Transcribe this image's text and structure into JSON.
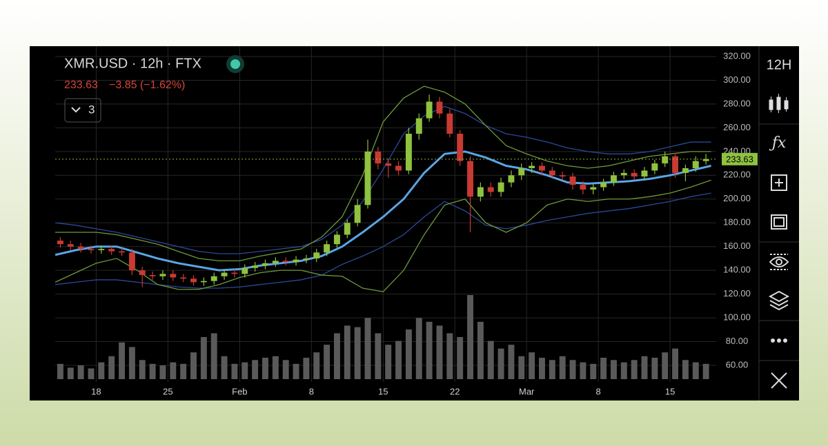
{
  "header": {
    "title": "XMR.USD · 12h · FTX",
    "change": "−3.85 (−1.62%)",
    "indicator_count": 3
  },
  "toolbar": {
    "interval": "12H"
  },
  "chart_data": {
    "type": "candlestick",
    "x": [
      0.5,
      1.5,
      2.5,
      3.5,
      4.5,
      5.5,
      6.5,
      7.5,
      8.5,
      9.5,
      10.5,
      11.5,
      12.5,
      13.5,
      14.5,
      15.5,
      16.5,
      17.5,
      18.5,
      19.5,
      20.5,
      21.5,
      22.5,
      23.5,
      24.5,
      25.5,
      26.5,
      27.5,
      28.5,
      29.5,
      30.5,
      31.5,
      32.5,
      33.5,
      34.5,
      35.5,
      36.5,
      37.5,
      38.5,
      39.5,
      40.5,
      41.5,
      42.5,
      43.5,
      44.5,
      45.5,
      46.5,
      47.5,
      48.5,
      49.5,
      50.5,
      51.5,
      52.5,
      53.5,
      54.5,
      55.5,
      56.5,
      57.5,
      58.5,
      59.5,
      60.5,
      61.5,
      62.5,
      63.5
    ],
    "open": [
      165,
      162,
      160,
      158,
      157,
      158,
      156,
      155,
      140,
      136,
      135,
      137,
      134,
      133,
      130,
      131,
      135,
      138,
      137,
      142,
      144,
      146,
      148,
      147,
      149,
      150,
      155,
      162,
      170,
      180,
      195,
      240,
      230,
      228,
      224,
      255,
      268,
      282,
      272,
      255,
      232,
      202,
      210,
      206,
      214,
      220,
      226,
      228,
      224,
      220,
      219,
      212,
      208,
      210,
      214,
      220,
      222,
      219,
      224,
      230,
      236,
      222,
      226,
      232
    ],
    "high": [
      168,
      165,
      163,
      161,
      161,
      161,
      159,
      158,
      143,
      139,
      140,
      140,
      137,
      136,
      134,
      138,
      141,
      141,
      145,
      147,
      149,
      151,
      151,
      152,
      153,
      158,
      165,
      173,
      183,
      200,
      250,
      244,
      234,
      232,
      260,
      272,
      288,
      286,
      276,
      258,
      236,
      214,
      214,
      218,
      224,
      230,
      231,
      231,
      227,
      223,
      222,
      215,
      213,
      217,
      223,
      225,
      225,
      227,
      233,
      240,
      239,
      229,
      236,
      238
    ],
    "low": [
      159,
      157,
      155,
      154,
      154,
      153,
      152,
      136,
      126,
      132,
      132,
      131,
      130,
      127,
      127,
      128,
      132,
      134,
      134,
      139,
      141,
      143,
      144,
      144,
      146,
      147,
      152,
      159,
      167,
      177,
      192,
      225,
      218,
      220,
      221,
      250,
      265,
      268,
      252,
      228,
      172,
      198,
      202,
      202,
      210,
      216,
      222,
      220,
      217,
      216,
      208,
      204,
      204,
      207,
      211,
      217,
      216,
      216,
      221,
      227,
      218,
      215,
      223,
      229
    ],
    "close": [
      162,
      160,
      158,
      157,
      158,
      156,
      155,
      140,
      136,
      135,
      137,
      134,
      133,
      130,
      131,
      135,
      138,
      137,
      142,
      144,
      146,
      148,
      147,
      149,
      150,
      155,
      162,
      170,
      180,
      195,
      240,
      230,
      228,
      224,
      255,
      268,
      282,
      272,
      255,
      232,
      202,
      210,
      206,
      214,
      220,
      226,
      228,
      224,
      220,
      219,
      212,
      208,
      210,
      214,
      220,
      222,
      219,
      224,
      230,
      236,
      222,
      226,
      232,
      233.63
    ],
    "volume": [
      20,
      15,
      18,
      14,
      22,
      30,
      48,
      42,
      25,
      20,
      18,
      22,
      20,
      35,
      55,
      60,
      30,
      20,
      22,
      25,
      28,
      30,
      25,
      20,
      28,
      35,
      45,
      60,
      70,
      68,
      80,
      60,
      45,
      50,
      65,
      80,
      75,
      70,
      60,
      55,
      110,
      75,
      50,
      40,
      45,
      30,
      35,
      28,
      25,
      30,
      25,
      22,
      20,
      28,
      25,
      22,
      25,
      30,
      28,
      35,
      40,
      25,
      22,
      20
    ],
    "up_color": "#8fc23f",
    "down_color": "#c83a32",
    "volume_color": "#5a5a5a",
    "xlim": [
      0,
      64.3
    ],
    "xticks": [
      {
        "value": 4,
        "label": "18"
      },
      {
        "value": 11,
        "label": "25"
      },
      {
        "value": 18,
        "label": "Feb"
      },
      {
        "value": 25,
        "label": "8"
      },
      {
        "value": 32,
        "label": "15"
      },
      {
        "value": 39,
        "label": "22"
      },
      {
        "value": 46,
        "label": "Mar"
      },
      {
        "value": 53,
        "label": "8"
      },
      {
        "value": 60,
        "label": "15"
      }
    ],
    "ylim": [
      60,
      320
    ],
    "yticks": [
      {
        "value": 60,
        "label": "60.00"
      },
      {
        "value": 80,
        "label": "80.00"
      },
      {
        "value": 100,
        "label": "100.00"
      },
      {
        "value": 120,
        "label": "120.00"
      },
      {
        "value": 140,
        "label": "140.00"
      },
      {
        "value": 160,
        "label": "160.00"
      },
      {
        "value": 180,
        "label": "180.00"
      },
      {
        "value": 200,
        "label": "200.00"
      },
      {
        "value": 220,
        "label": "220.00"
      },
      {
        "value": 240,
        "label": "240.00"
      },
      {
        "value": 260,
        "label": "260.00"
      },
      {
        "value": 280,
        "label": "280.00"
      },
      {
        "value": 300,
        "label": "300.00"
      },
      {
        "value": 320,
        "label": "320.00"
      }
    ],
    "grid": true,
    "last_price": 233.63,
    "last_price_color": "#8fc23f",
    "change_color": "#d9443a",
    "overlay_x": [
      0,
      2,
      4,
      6,
      8,
      10,
      12,
      14,
      16,
      18,
      20,
      22,
      24,
      26,
      28,
      30,
      32,
      34,
      36,
      38,
      40,
      42,
      44,
      46,
      48,
      50,
      52,
      54,
      56,
      58,
      60,
      62,
      64
    ],
    "overlays": [
      {
        "color": "#2b4a9c",
        "values": [
          180,
          178,
          175,
          172,
          168,
          164,
          160,
          156,
          154,
          154,
          156,
          158,
          160,
          166,
          178,
          198,
          225,
          255,
          270,
          278,
          272,
          262,
          255,
          252,
          248,
          243,
          240,
          238,
          238,
          240,
          244,
          248,
          248
        ]
      },
      {
        "color": "#2b4a9c",
        "values": [
          128,
          130,
          132,
          132,
          130,
          128,
          126,
          125,
          125,
          126,
          128,
          130,
          132,
          136,
          145,
          152,
          160,
          170,
          185,
          198,
          190,
          178,
          175,
          178,
          182,
          185,
          188,
          190,
          192,
          195,
          198,
          202,
          205
        ]
      },
      {
        "color": "#6f9a3c",
        "values": [
          172,
          172,
          172,
          170,
          166,
          162,
          156,
          150,
          148,
          148,
          152,
          155,
          158,
          168,
          185,
          220,
          265,
          285,
          295,
          290,
          280,
          262,
          245,
          238,
          232,
          228,
          226,
          228,
          232,
          236,
          238,
          240,
          240
        ]
      },
      {
        "color": "#6f9a3c",
        "values": [
          130,
          138,
          146,
          150,
          140,
          128,
          124,
          124,
          128,
          134,
          138,
          140,
          140,
          136,
          135,
          125,
          122,
          140,
          170,
          195,
          200,
          180,
          172,
          180,
          195,
          200,
          198,
          200,
          200,
          202,
          205,
          210,
          216
        ]
      },
      {
        "color": "#5aa6e8",
        "values": [
          153,
          157,
          160,
          160,
          155,
          150,
          146,
          143,
          140,
          141,
          144,
          146,
          148,
          152,
          160,
          172,
          185,
          200,
          222,
          238,
          240,
          235,
          228,
          225,
          220,
          214,
          213,
          214,
          215,
          217,
          220,
          224,
          228
        ]
      }
    ]
  }
}
